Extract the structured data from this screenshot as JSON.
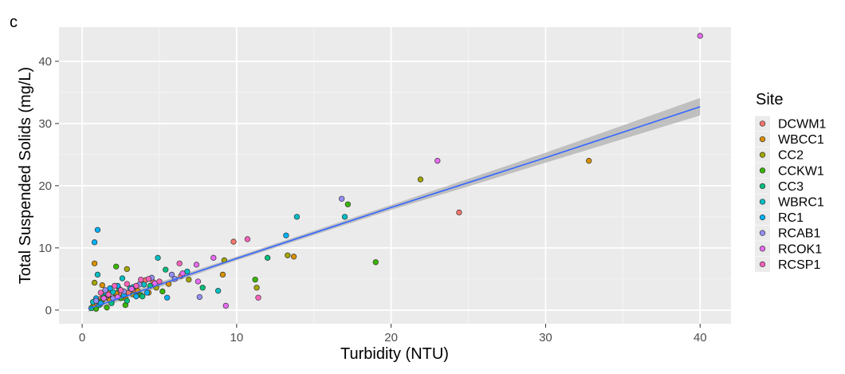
{
  "panel_label": "c",
  "chart_data": {
    "type": "scatter",
    "title": "",
    "xlabel": "Turbidity (NTU)",
    "ylabel": "Total Suspended Solids (mg/L)",
    "xlim": [
      -1.5,
      42
    ],
    "ylim": [
      -2.2,
      45.5
    ],
    "x_ticks": [
      0,
      10,
      20,
      30,
      40
    ],
    "y_ticks": [
      0,
      10,
      20,
      30,
      40
    ],
    "x_tick_labels": [
      "0",
      "10",
      "20",
      "30",
      "40"
    ],
    "y_tick_labels": [
      "0",
      "10",
      "20",
      "30",
      "40"
    ],
    "grid": true,
    "legend": {
      "title": "Site",
      "position": "right",
      "entries": [
        {
          "name": "DCWM1",
          "color": "#F8766D"
        },
        {
          "name": "WBCC1",
          "color": "#D89000"
        },
        {
          "name": "CC2",
          "color": "#A3A500"
        },
        {
          "name": "CCKW1",
          "color": "#39B600"
        },
        {
          "name": "CC3",
          "color": "#00BF7D"
        },
        {
          "name": "WBRC1",
          "color": "#00BFC4"
        },
        {
          "name": "RC1",
          "color": "#00B0F6"
        },
        {
          "name": "RCAB1",
          "color": "#9590FF"
        },
        {
          "name": "RCOK1",
          "color": "#E76BF3"
        },
        {
          "name": "RCSP1",
          "color": "#FF62BC"
        }
      ]
    },
    "fit": {
      "type": "linear",
      "color": "#3366FF",
      "ribbon_color": "#B0B0B0",
      "x": [
        0.4,
        10,
        20,
        30,
        40
      ],
      "y": [
        0.2,
        8.3,
        16.5,
        24.5,
        32.7
      ],
      "ribbon_lower": [
        -0.3,
        8.0,
        16.1,
        23.7,
        31.3
      ],
      "ribbon_upper": [
        0.7,
        8.6,
        16.9,
        25.3,
        34.1
      ]
    },
    "series": [
      {
        "name": "DCWM1",
        "points": [
          [
            24.4,
            15.7
          ],
          [
            9.8,
            11.0
          ],
          [
            1.2,
            1.8
          ],
          [
            2.5,
            2.4
          ],
          [
            3.4,
            3.0
          ],
          [
            4.1,
            4.8
          ],
          [
            0.8,
            0.9
          ],
          [
            1.9,
            1.5
          ],
          [
            6.4,
            5.5
          ],
          [
            3.0,
            2.8
          ],
          [
            1.5,
            2.0
          ],
          [
            4.6,
            4.5
          ]
        ]
      },
      {
        "name": "WBCC1",
        "points": [
          [
            32.8,
            24.0
          ],
          [
            13.7,
            8.6
          ],
          [
            0.8,
            7.5
          ],
          [
            9.1,
            5.7
          ],
          [
            1.3,
            4.0
          ],
          [
            2.2,
            2.7
          ],
          [
            5.6,
            4.2
          ],
          [
            3.6,
            3.1
          ],
          [
            0.7,
            0.6
          ],
          [
            1.8,
            1.6
          ],
          [
            4.3,
            2.8
          ],
          [
            2.8,
            1.9
          ]
        ]
      },
      {
        "name": "CC2",
        "points": [
          [
            21.9,
            21.0
          ],
          [
            13.3,
            8.8
          ],
          [
            11.3,
            3.6
          ],
          [
            2.9,
            6.6
          ],
          [
            9.2,
            8.0
          ],
          [
            0.8,
            4.4
          ],
          [
            1.7,
            3.1
          ],
          [
            6.9,
            4.9
          ],
          [
            1.1,
            1.3
          ],
          [
            3.3,
            2.5
          ],
          [
            2.1,
            2.0
          ],
          [
            4.8,
            3.6
          ]
        ]
      },
      {
        "name": "CCKW1",
        "points": [
          [
            19.0,
            7.7
          ],
          [
            17.2,
            17.0
          ],
          [
            11.2,
            4.9
          ],
          [
            2.2,
            7.0
          ],
          [
            1.6,
            0.4
          ],
          [
            2.8,
            0.8
          ],
          [
            1.3,
            1.6
          ],
          [
            3.8,
            2.4
          ],
          [
            5.2,
            3.0
          ],
          [
            0.9,
            0.2
          ],
          [
            2.5,
            1.9
          ]
        ]
      },
      {
        "name": "CC3",
        "points": [
          [
            12.0,
            8.4
          ],
          [
            5.4,
            6.5
          ],
          [
            7.8,
            3.6
          ],
          [
            0.6,
            0.3
          ],
          [
            1.4,
            2.2
          ],
          [
            2.4,
            3.4
          ],
          [
            3.9,
            2.2
          ],
          [
            1.9,
            1.1
          ],
          [
            1.1,
            0.8
          ],
          [
            4.4,
            3.9
          ],
          [
            2.9,
            1.5
          ]
        ]
      },
      {
        "name": "WBRC1",
        "points": [
          [
            13.9,
            15.0
          ],
          [
            17.0,
            15.0
          ],
          [
            4.9,
            8.4
          ],
          [
            6.8,
            6.2
          ],
          [
            1.0,
            5.7
          ],
          [
            2.6,
            5.1
          ],
          [
            0.7,
            1.3
          ],
          [
            1.6,
            2.6
          ],
          [
            3.1,
            3.5
          ],
          [
            2.0,
            2.9
          ],
          [
            4.0,
            4.1
          ],
          [
            8.8,
            3.1
          ]
        ]
      },
      {
        "name": "RC1",
        "points": [
          [
            1.0,
            12.9
          ],
          [
            0.8,
            10.9
          ],
          [
            13.2,
            12.0
          ],
          [
            1.2,
            1.1
          ],
          [
            2.3,
            3.9
          ],
          [
            3.5,
            2.2
          ],
          [
            4.2,
            2.8
          ],
          [
            1.8,
            3.5
          ],
          [
            5.5,
            2.0
          ],
          [
            0.9,
            1.9
          ],
          [
            3.3,
            3.7
          ],
          [
            2.7,
            2.4
          ]
        ]
      },
      {
        "name": "RCAB1",
        "points": [
          [
            16.8,
            17.9
          ],
          [
            7.6,
            2.1
          ],
          [
            1.5,
            3.2
          ],
          [
            2.7,
            3.0
          ],
          [
            3.7,
            4.1
          ],
          [
            4.5,
            5.2
          ],
          [
            5.8,
            5.7
          ],
          [
            0.9,
            1.5
          ],
          [
            2.0,
            1.9
          ],
          [
            6.0,
            5.0
          ],
          [
            1.7,
            2.4
          ]
        ]
      },
      {
        "name": "RCOK1",
        "points": [
          [
            23.0,
            24.0
          ],
          [
            40.0,
            44.1
          ],
          [
            9.3,
            0.7
          ],
          [
            7.4,
            7.3
          ],
          [
            8.5,
            8.4
          ],
          [
            7.5,
            4.6
          ],
          [
            3.2,
            3.4
          ],
          [
            2.3,
            2.1
          ],
          [
            1.4,
            1.9
          ],
          [
            4.7,
            4.3
          ],
          [
            6.5,
            5.9
          ]
        ]
      },
      {
        "name": "RCSP1",
        "points": [
          [
            10.7,
            11.4
          ],
          [
            11.4,
            2.0
          ],
          [
            6.3,
            7.5
          ],
          [
            4.3,
            5.0
          ],
          [
            3.8,
            4.9
          ],
          [
            2.1,
            3.9
          ],
          [
            1.2,
            2.8
          ],
          [
            2.9,
            4.2
          ],
          [
            1.7,
            2.5
          ],
          [
            5.0,
            4.6
          ],
          [
            3.5,
            3.9
          ],
          [
            2.5,
            3.2
          ]
        ]
      }
    ]
  }
}
